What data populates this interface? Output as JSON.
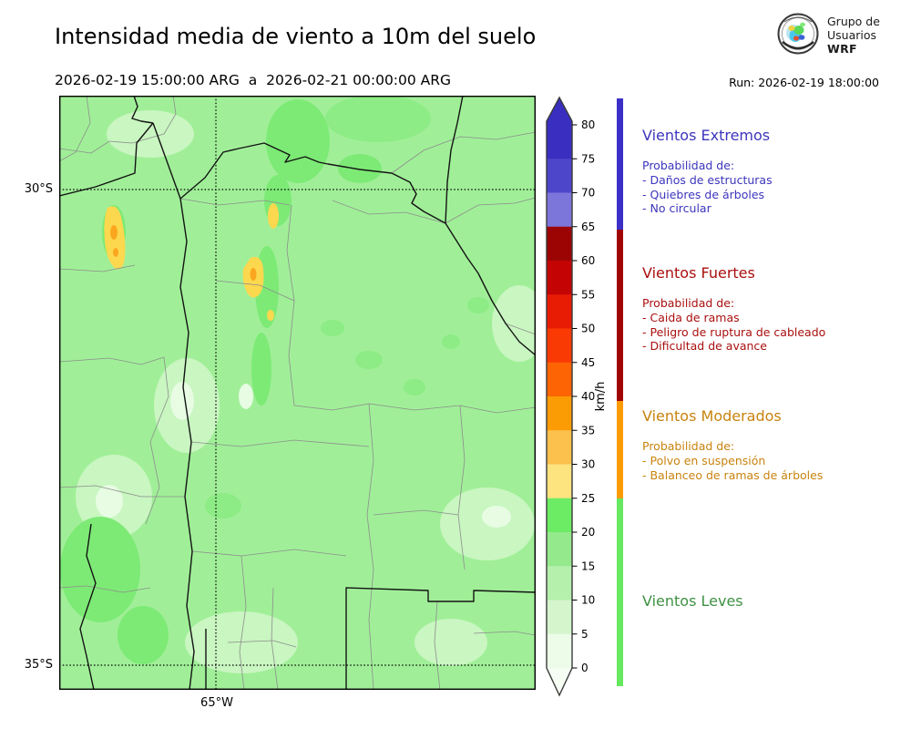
{
  "header": {
    "title": "Intensidad media de viento a 10m del suelo",
    "period": "2026-02-19 15:00:00 ARG  a  2026-02-21 00:00:00 ARG",
    "run_label": "Run: 2026-02-19 18:00:00",
    "logo_text": {
      "line1": "Grupo de",
      "line2": "Usuarios",
      "line3": "WRF"
    }
  },
  "map": {
    "lat_labels": [
      "30°S",
      "35°S"
    ],
    "lon_label": "65°W"
  },
  "colorbar": {
    "unit": "km/h",
    "tick_values": [
      0,
      5,
      10,
      15,
      20,
      25,
      30,
      35,
      40,
      45,
      50,
      55,
      60,
      65,
      70,
      75,
      80
    ],
    "segment_colors": [
      "#ecfce8",
      "#d5f5cd",
      "#b5f0ad",
      "#95e98d",
      "#6cec64",
      "#fde47f",
      "#fcc04c",
      "#fc9c04",
      "#fc6404",
      "#fa3a05",
      "#e81c04",
      "#c40404",
      "#9c0404",
      "#7d76da",
      "#4e46ca",
      "#3a2ec0"
    ],
    "over_color": "#3a2ec0",
    "under_color": "#f6fef4",
    "outline_color": "#3a3a3a"
  },
  "legend": {
    "sections": [
      {
        "title": "Vientos Extremos",
        "color": "#3c35bc",
        "strip_color": "#3b2fc8",
        "intro": "Probabilidad de:",
        "items": [
          "- Daños de estructuras",
          "- Quiebres de árboles",
          "- No circular"
        ]
      },
      {
        "title": "Vientos Fuertes",
        "color": "#aa0f0f",
        "strip_color": "#a00404",
        "intro": "Probabilidad de:",
        "items": [
          "- Caida de ramas",
          "- Peligro de ruptura de cableado",
          "- Dificultad de avance"
        ]
      },
      {
        "title": "Vientos Moderados",
        "color": "#c8830e",
        "strip_color": "#fc9c04",
        "intro": "Probabilidad de:",
        "items": [
          "- Polvo en suspensión",
          "- Balanceo de ramas de árboles"
        ]
      },
      {
        "title": "Vientos Leves",
        "color": "#3f9143",
        "strip_color": "#66e860",
        "intro": "",
        "items": []
      }
    ]
  }
}
